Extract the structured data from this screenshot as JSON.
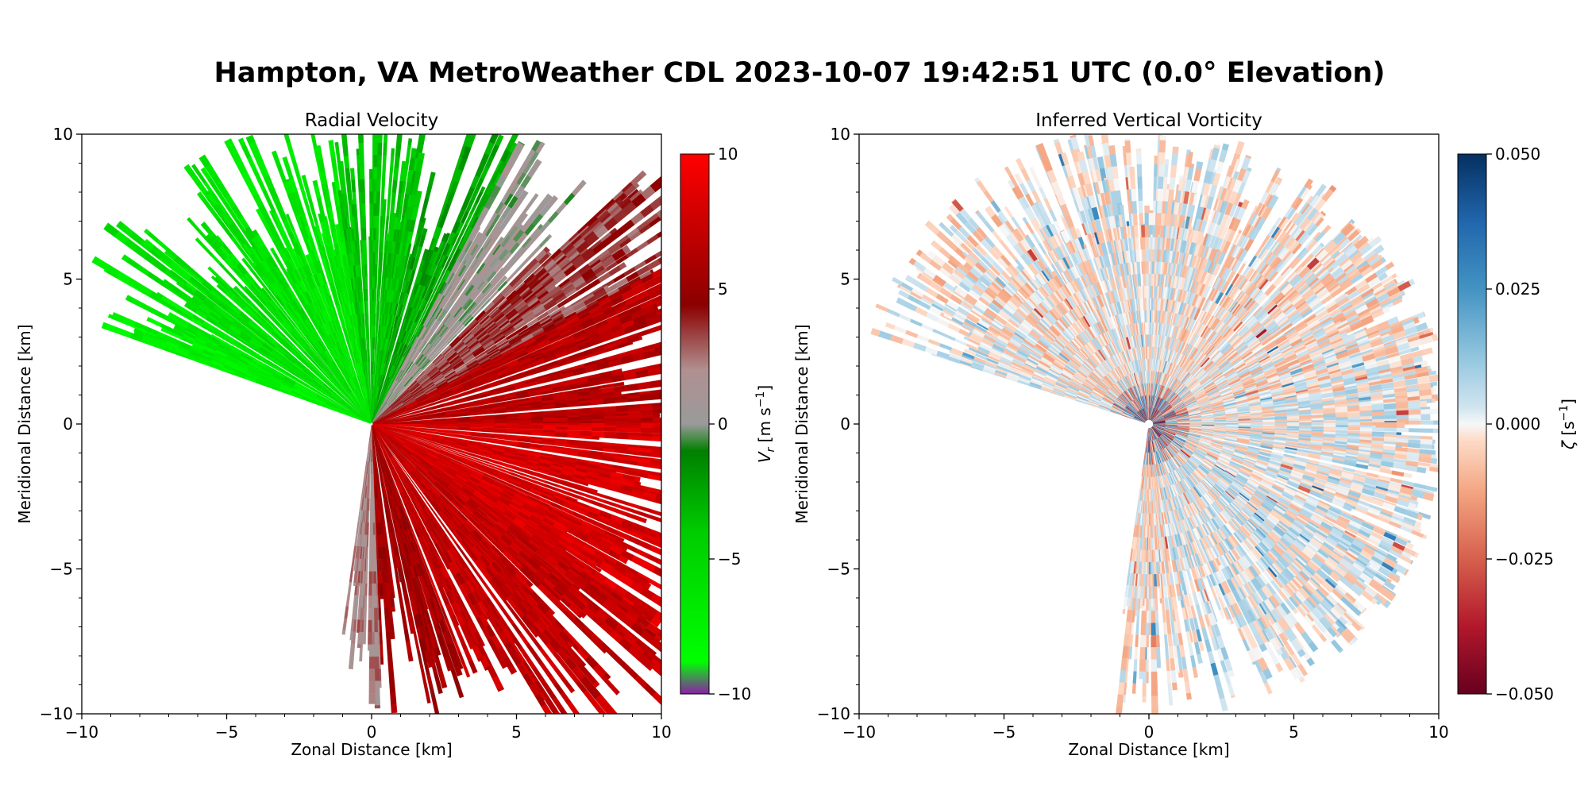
{
  "suptitle": "Hampton, VA MetroWeather CDL 2023-10-07 19:42:51 UTC (0.0° Elevation)",
  "chart_data": [
    {
      "type": "heatmap",
      "projection": "polar radar sweep (PPI)",
      "title": "Radial Velocity",
      "xlabel": "Zonal Distance [km]",
      "ylabel": "Meridional Distance [km]",
      "xlim": [
        -10,
        10
      ],
      "ylim": [
        -10,
        10
      ],
      "xticks": [
        "−10",
        "−5",
        "0",
        "5",
        "10"
      ],
      "yticks": [
        "−10",
        "−5",
        "0",
        "5",
        "10"
      ],
      "grid": false,
      "colorbar": {
        "label": "V_r [m s⁻¹]",
        "range": [
          -10,
          10
        ],
        "ticks": [
          "−10",
          "−5",
          "0",
          "5",
          "10"
        ],
        "colors": [
          "#8b1fa8",
          "#00ff00",
          "#008000",
          "#9a9a9a",
          "#8b0000",
          "#ff0000"
        ]
      },
      "sectors": [
        {
          "bearing_start": 290,
          "bearing_end": 296,
          "value": -7.5
        },
        {
          "bearing_start": 296,
          "bearing_end": 302,
          "value": -7.0
        },
        {
          "bearing_start": 302,
          "bearing_end": 330,
          "value": -6.0
        },
        {
          "bearing_start": 330,
          "bearing_end": 352,
          "value": -6.5
        },
        {
          "bearing_start": 352,
          "bearing_end": 12,
          "value": -4.0
        },
        {
          "bearing_start": 12,
          "bearing_end": 28,
          "value": -2.5
        },
        {
          "bearing_start": 28,
          "bearing_end": 45,
          "value": 0.5
        },
        {
          "bearing_start": 45,
          "bearing_end": 62,
          "value": 3.5
        },
        {
          "bearing_start": 62,
          "bearing_end": 90,
          "value": 6.5
        },
        {
          "bearing_start": 90,
          "bearing_end": 125,
          "value": 8.0
        },
        {
          "bearing_start": 125,
          "bearing_end": 160,
          "value": 7.0
        },
        {
          "bearing_start": 160,
          "bearing_end": 178,
          "value": 5.5
        },
        {
          "bearing_start": 178,
          "bearing_end": 188,
          "value": 2.0
        }
      ]
    },
    {
      "type": "heatmap",
      "projection": "polar radar sweep (PPI)",
      "title": "Inferred Vertical Vorticity",
      "xlabel": "Zonal Distance [km]",
      "ylabel": "Meridional Distance [km]",
      "xlim": [
        -10,
        10
      ],
      "ylim": [
        -10,
        10
      ],
      "xticks": [
        "−10",
        "−5",
        "0",
        "5",
        "10"
      ],
      "yticks": [
        "−10",
        "−5",
        "0",
        "5",
        "10"
      ],
      "grid": false,
      "colorbar": {
        "label": "ζ [s⁻¹]",
        "range": [
          -0.05,
          0.05
        ],
        "ticks": [
          "−0.050",
          "−0.025",
          "0.000",
          "0.025",
          "0.050"
        ],
        "colors": [
          "#67001f",
          "#d6604d",
          "#f4a582",
          "#fddbc7",
          "#f7f7f7",
          "#d1e5f0",
          "#92c5de",
          "#4393c3",
          "#053061"
        ]
      },
      "sectors": [
        {
          "bearing_start": 288,
          "bearing_end": 300,
          "value": 0.005
        },
        {
          "bearing_start": 300,
          "bearing_end": 340,
          "value": -0.004
        },
        {
          "bearing_start": 340,
          "bearing_end": 20,
          "value": 0.002
        },
        {
          "bearing_start": 20,
          "bearing_end": 80,
          "value": -0.005
        },
        {
          "bearing_start": 80,
          "bearing_end": 120,
          "value": 0.003
        },
        {
          "bearing_start": 120,
          "bearing_end": 170,
          "value": 0.006
        },
        {
          "bearing_start": 170,
          "bearing_end": 188,
          "value": -0.004
        }
      ]
    }
  ]
}
